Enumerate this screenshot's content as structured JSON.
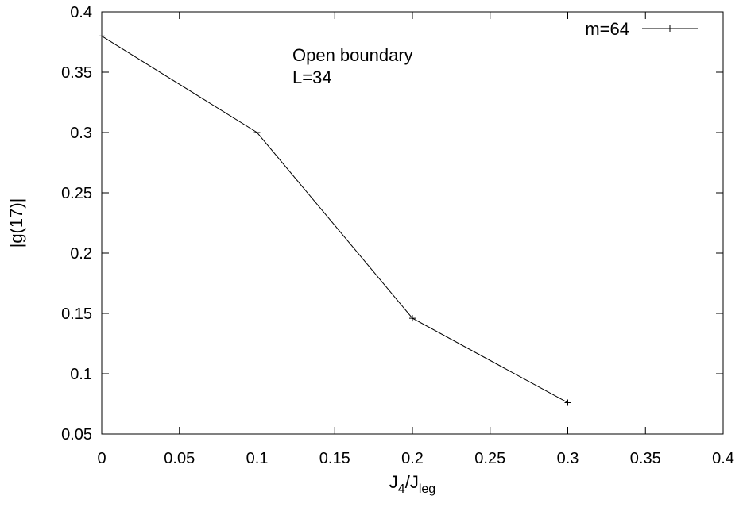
{
  "chart_data": {
    "type": "line",
    "title": "",
    "xlabel": {
      "main": "J",
      "sub1": "4",
      "slash": "/J",
      "sub2": "leg"
    },
    "ylabel": "|g(17)|",
    "xlim": [
      0,
      0.4
    ],
    "ylim": [
      0.05,
      0.4
    ],
    "x_ticks": [
      0,
      0.05,
      0.1,
      0.15,
      0.2,
      0.25,
      0.3,
      0.35,
      0.4
    ],
    "x_tick_labels": [
      "0",
      "0.05",
      "0.1",
      "0.15",
      "0.2",
      "0.25",
      "0.3",
      "0.35",
      "0.4"
    ],
    "y_ticks": [
      0.05,
      0.1,
      0.15,
      0.2,
      0.25,
      0.3,
      0.35,
      0.4
    ],
    "y_tick_labels": [
      "0.05",
      "0.1",
      "0.15",
      "0.2",
      "0.25",
      "0.3",
      "0.35",
      "0.4"
    ],
    "grid": false,
    "legend_position": "top-right",
    "series": [
      {
        "name": "m=64",
        "x": [
          0,
          0.1,
          0.2,
          0.3
        ],
        "y": [
          0.38,
          0.3,
          0.146,
          0.076
        ]
      }
    ],
    "annotations": [
      "Open boundary",
      "L=34"
    ],
    "line_color": "#000000"
  }
}
